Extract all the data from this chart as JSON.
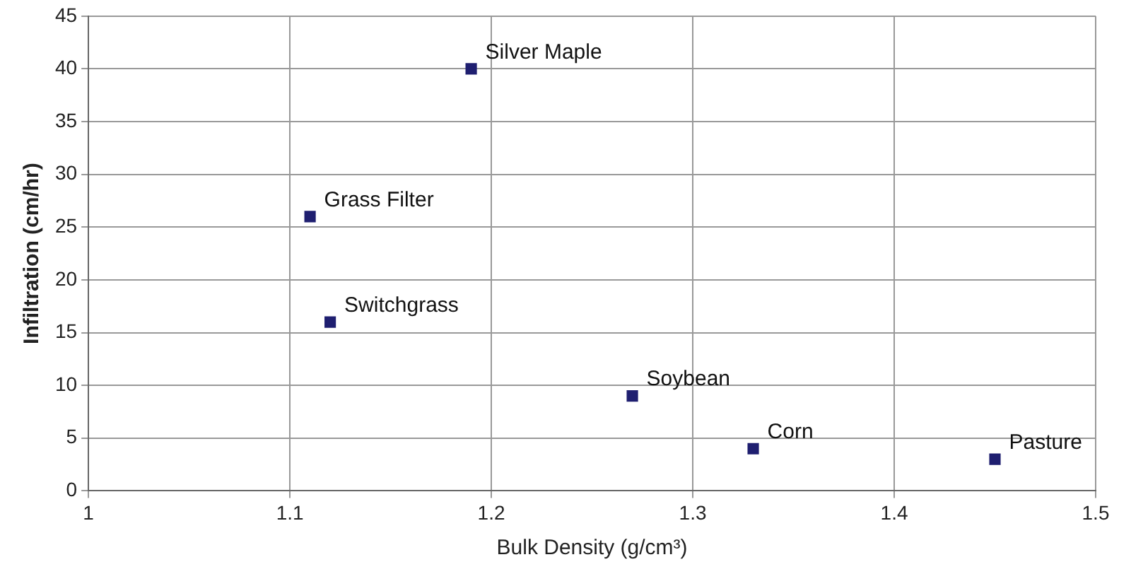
{
  "chart_data": {
    "type": "scatter",
    "xlabel": "Bulk Density (g/cm³)",
    "ylabel": "Infiltration (cm/hr)",
    "x": [
      1.19,
      1.11,
      1.12,
      1.27,
      1.33,
      1.45
    ],
    "values": [
      40,
      26,
      16,
      9,
      4,
      3
    ],
    "color": "#1f1f70",
    "marker": "square",
    "xlim": [
      1,
      1.5
    ],
    "xticks": [
      1,
      1.1,
      1.2,
      1.3,
      1.4,
      1.5
    ],
    "ylim": [
      0,
      45
    ],
    "yticks": [
      0,
      5,
      10,
      15,
      20,
      25,
      30,
      35,
      40,
      45
    ],
    "grid": true,
    "legend": false,
    "annotations": [
      {
        "text": "Silver Maple",
        "x": 1.19,
        "y": 40
      },
      {
        "text": "Grass Filter",
        "x": 1.11,
        "y": 26
      },
      {
        "text": "Switchgrass",
        "x": 1.12,
        "y": 16
      },
      {
        "text": "Soybean",
        "x": 1.27,
        "y": 9
      },
      {
        "text": "Corn",
        "x": 1.33,
        "y": 4
      },
      {
        "text": "Pasture",
        "x": 1.45,
        "y": 3
      }
    ]
  }
}
